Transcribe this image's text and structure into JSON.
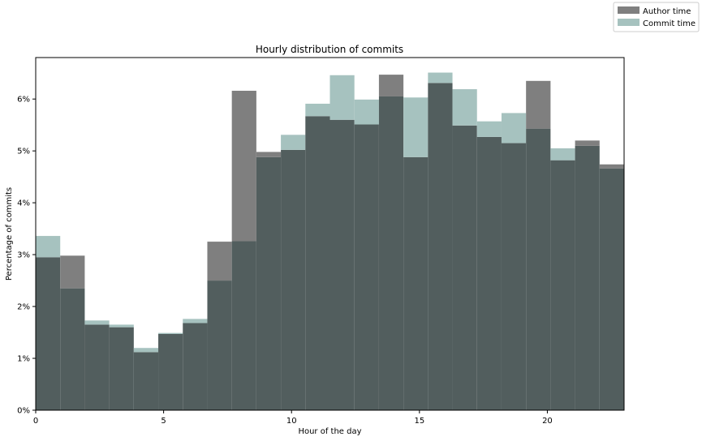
{
  "chart_data": {
    "type": "bar",
    "title": "Hourly distribution of commits",
    "xlabel": "Hour of the day",
    "ylabel": "Percentage of commits",
    "xlim": [
      0,
      23
    ],
    "ylim": [
      0,
      6.8
    ],
    "x_ticks": [
      0,
      5,
      10,
      15,
      20
    ],
    "y_ticks": [
      0,
      1,
      2,
      3,
      4,
      5,
      6
    ],
    "y_tick_suffix": "%",
    "legend_position": "top-right",
    "grid": false,
    "bins": 24,
    "series": [
      {
        "name": "Author time",
        "color": "#7f7f7f",
        "values": [
          2.95,
          2.98,
          1.65,
          1.6,
          1.12,
          1.47,
          1.68,
          3.25,
          6.16,
          4.98,
          5.02,
          5.67,
          5.6,
          5.51,
          6.47,
          4.88,
          6.31,
          5.49,
          5.27,
          5.15,
          6.35,
          4.82,
          5.2,
          4.74
        ]
      },
      {
        "name": "Commit time",
        "color": "#a6c2bf",
        "values": [
          3.36,
          2.35,
          1.73,
          1.65,
          1.2,
          1.49,
          1.76,
          2.5,
          3.26,
          4.88,
          5.31,
          5.91,
          6.46,
          5.99,
          6.05,
          6.03,
          6.51,
          6.19,
          5.57,
          5.73,
          5.43,
          5.05,
          5.1,
          4.66
        ]
      }
    ],
    "overlap_color": "#525e5e"
  }
}
